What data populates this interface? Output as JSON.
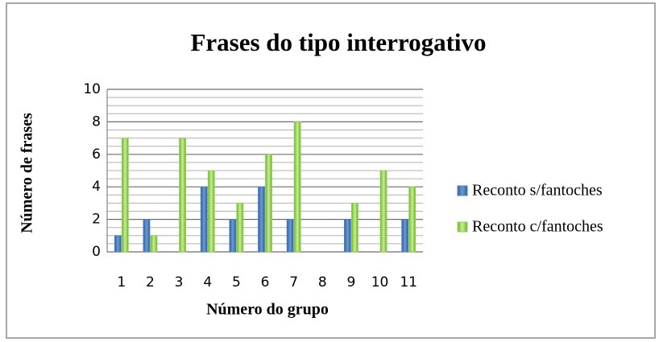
{
  "chart_data": {
    "type": "bar",
    "title": "Frases do tipo interrogativo",
    "x_label": "Número do grupo",
    "y_label": "Número de frases",
    "categories": [
      "1",
      "2",
      "3",
      "4",
      "5",
      "6",
      "7",
      "8",
      "9",
      "10",
      "11"
    ],
    "series": [
      {
        "name": "Reconto s/fantoches",
        "color": "#4f81bd",
        "values": [
          1,
          2,
          0,
          4,
          2,
          4,
          2,
          0,
          2,
          0,
          2
        ]
      },
      {
        "name": "Reconto c/fantoches",
        "color": "#92d050",
        "values": [
          7,
          1,
          7,
          5,
          3,
          6,
          8,
          0,
          3,
          5,
          4
        ]
      }
    ],
    "ylim": [
      0,
      10
    ],
    "yticks": [
      0,
      2,
      4,
      6,
      8,
      10
    ],
    "yminorticks": [
      0.5,
      1,
      1.5,
      2.5,
      3,
      3.5,
      4.5,
      5,
      5.5,
      6.5,
      7,
      7.5,
      8.5,
      9,
      9.5
    ],
    "grid": true,
    "legend": "right"
  }
}
